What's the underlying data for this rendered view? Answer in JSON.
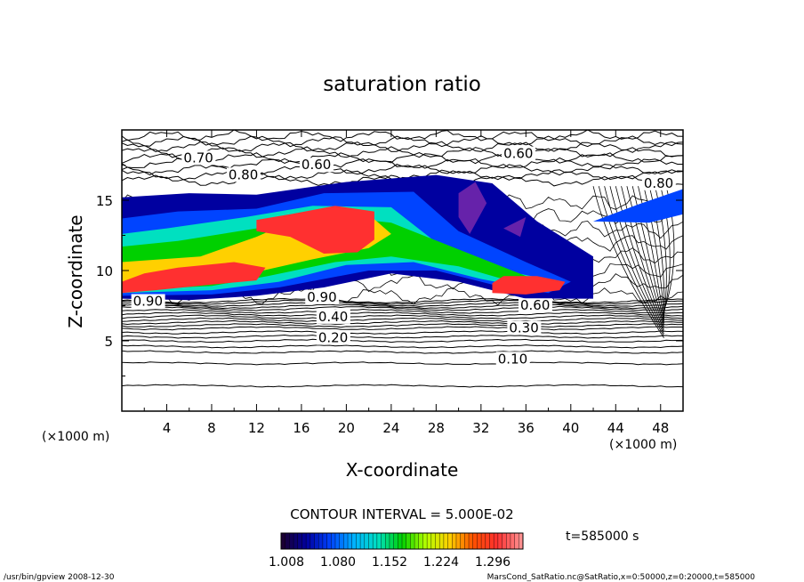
{
  "chart_data": {
    "type": "heatmap",
    "title": "saturation ratio",
    "xlabel": "X-coordinate",
    "ylabel": "Z-coordinate",
    "x_unit": "(×1000 m)",
    "z_unit": "(×1000 m)",
    "xlim": [
      0,
      50
    ],
    "ylim": [
      0,
      20
    ],
    "x_ticks": [
      "4",
      "8",
      "12",
      "16",
      "20",
      "24",
      "28",
      "32",
      "36",
      "40",
      "44",
      "48"
    ],
    "y_ticks": [
      "5",
      "10",
      "15"
    ],
    "contour_labels": [
      {
        "text": "0.70",
        "x": 5.5,
        "z": 17.7
      },
      {
        "text": "0.60",
        "x": 16.0,
        "z": 17.2
      },
      {
        "text": "0.80",
        "x": 9.5,
        "z": 16.5
      },
      {
        "text": "0.60",
        "x": 34.0,
        "z": 18.0
      },
      {
        "text": "0.80",
        "x": 46.5,
        "z": 15.9
      },
      {
        "text": "0.90",
        "x": 1.0,
        "z": 7.5
      },
      {
        "text": "0.90",
        "x": 16.5,
        "z": 7.8
      },
      {
        "text": "0.40",
        "x": 17.5,
        "z": 6.4
      },
      {
        "text": "0.20",
        "x": 17.5,
        "z": 4.9
      },
      {
        "text": "0.60",
        "x": 35.5,
        "z": 7.2
      },
      {
        "text": "0.30",
        "x": 34.5,
        "z": 5.6
      },
      {
        "text": "0.10",
        "x": 33.5,
        "z": 3.4
      }
    ],
    "colorbar": {
      "title": "CONTOUR INTERVAL = 5.000E-02",
      "tick_labels": [
        "1.008",
        "1.080",
        "1.152",
        "1.224",
        "1.296"
      ],
      "range": [
        1.008,
        1.296
      ],
      "colors": [
        "#1a0033",
        "#0000a0",
        "#0044ff",
        "#00b4ff",
        "#00e0c0",
        "#00d000",
        "#b4ff00",
        "#ffd000",
        "#ff5000",
        "#ff3030",
        "#ff9090"
      ]
    },
    "time_label": "t=585000 s",
    "colors": {
      "low": "#000080",
      "mid": "#00c800",
      "high": "#ff2020",
      "peak": "#ff8080"
    }
  },
  "footer": {
    "left": "/usr/bin/gpview   2008-12-30",
    "right": "MarsCond_SatRatio.nc@SatRatio,x=0:50000,z=0:20000,t=585000"
  }
}
